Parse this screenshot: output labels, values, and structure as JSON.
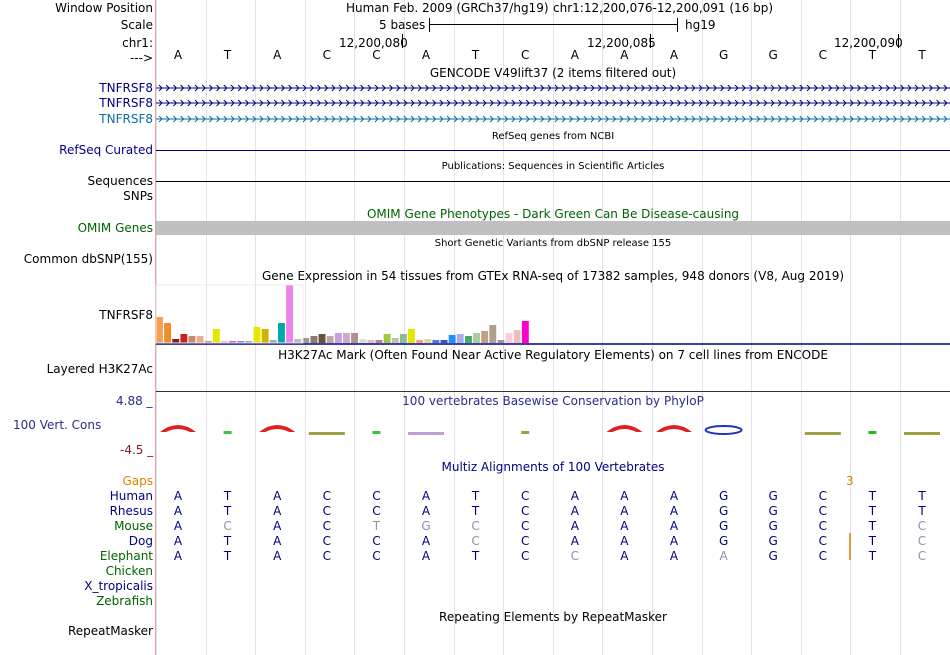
{
  "header": {
    "window_position_label": "Window Position",
    "scale_label": "Scale",
    "chr_label": "chr1:",
    "arrow_label": "--->",
    "assembly": "Human Feb. 2009 (GRCh37/hg19)",
    "position": "chr1:12,200,076-12,200,091 (16 bp)",
    "scale_text": "5 bases",
    "scale_db": "hg19",
    "ticks": [
      "12,200,080",
      "12,200,085",
      "12,200,090"
    ]
  },
  "sequence": [
    "A",
    "T",
    "A",
    "C",
    "C",
    "A",
    "T",
    "C",
    "A",
    "A",
    "A",
    "G",
    "G",
    "C",
    "T",
    "T"
  ],
  "gencode": {
    "title": "GENCODE V49lift37 (2 items filtered out)",
    "items": [
      "TNFRSF8",
      "TNFRSF8",
      "TNFRSF8"
    ]
  },
  "refseq": {
    "title": "RefSeq genes from NCBI",
    "label": "RefSeq Curated"
  },
  "publications": {
    "title": "Publications: Sequences in Scientific Articles",
    "label": "Sequences"
  },
  "snps_label": "SNPs",
  "omim": {
    "title": "OMIM Gene Phenotypes - Dark Green Can Be Disease-causing",
    "label": "OMIM Genes"
  },
  "dbsnp": {
    "title": "Short Genetic Variants from dbSNP release 155",
    "label": "Common dbSNP(155)"
  },
  "gtex": {
    "title": "Gene Expression in 54 tissues from GTEx RNA-seq of 17382 samples, 948 donors (V8, Aug 2019)",
    "label": "TNFRSF8",
    "bars": [
      {
        "v": 26,
        "c": "#f5a050"
      },
      {
        "v": 20,
        "c": "#f28c28"
      },
      {
        "v": 4,
        "c": "#8b1a1a"
      },
      {
        "v": 9,
        "c": "#cc2222"
      },
      {
        "v": 7,
        "c": "#cd8a66"
      },
      {
        "v": 7,
        "c": "#e8b090"
      },
      {
        "v": 2,
        "c": "#c0a080"
      },
      {
        "v": 14,
        "c": "#e6e600"
      },
      {
        "v": 2,
        "c": "#ffb6c1"
      },
      {
        "v": 2,
        "c": "#cc66cc"
      },
      {
        "v": 2,
        "c": "#8888cc"
      },
      {
        "v": 2,
        "c": "#aaaaaa"
      },
      {
        "v": 16,
        "c": "#e6e600"
      },
      {
        "v": 14,
        "c": "#d4b000"
      },
      {
        "v": 3,
        "c": "#aaaaaa"
      },
      {
        "v": 20,
        "c": "#00aaaa"
      },
      {
        "v": 58,
        "c": "#ee82ee"
      },
      {
        "v": 4,
        "c": "#bbbbbb"
      },
      {
        "v": 5,
        "c": "#999999"
      },
      {
        "v": 7,
        "c": "#8b7b6b"
      },
      {
        "v": 9,
        "c": "#6b5040"
      },
      {
        "v": 7,
        "c": "#bbaa99"
      },
      {
        "v": 10,
        "c": "#c9a0dc"
      },
      {
        "v": 10,
        "c": "#ccaacc"
      },
      {
        "v": 10,
        "c": "#b09090"
      },
      {
        "v": 4,
        "c": "#dddddd"
      },
      {
        "v": 3,
        "c": "#e0c0c0"
      },
      {
        "v": 3,
        "c": "#aa88aa"
      },
      {
        "v": 9,
        "c": "#99cc44"
      },
      {
        "v": 5,
        "c": "#c0c0c0"
      },
      {
        "v": 9,
        "c": "#8fbc8f"
      },
      {
        "v": 14,
        "c": "#e6e600"
      },
      {
        "v": 3,
        "c": "#ff9999"
      },
      {
        "v": 4,
        "c": "#dddd88"
      },
      {
        "v": 3,
        "c": "#5577dd"
      },
      {
        "v": 3,
        "c": "#3355cc"
      },
      {
        "v": 8,
        "c": "#1e90ff"
      },
      {
        "v": 9,
        "c": "#aaaaee"
      },
      {
        "v": 7,
        "c": "#44aa66"
      },
      {
        "v": 10,
        "c": "#aaccaa"
      },
      {
        "v": 12,
        "c": "#c0a080"
      },
      {
        "v": 18,
        "c": "#b0a090"
      },
      {
        "v": 3,
        "c": "#999999"
      },
      {
        "v": 10,
        "c": "#ffccdd"
      },
      {
        "v": 13,
        "c": "#e8c0c0"
      },
      {
        "v": 22,
        "c": "#ff00cc"
      }
    ]
  },
  "h3k27ac": {
    "title": "H3K27Ac Mark (Often Found Near Active Regulatory Elements) on 7 cell lines from ENCODE",
    "label": "Layered H3K27Ac"
  },
  "cons": {
    "title": "100 vertebrates Basewise Conservation by PhyloP",
    "label": "100 Vert. Cons",
    "max": "4.88 _",
    "min": "-4.5 _"
  },
  "multiz": {
    "title": "Multiz Alignments of 100 Vertebrates",
    "gaps_label": "Gaps",
    "gap_value": "3",
    "species": [
      {
        "name": "Human",
        "seq": "ATACCATCAAAGGCTT",
        "faint": "................"
      },
      {
        "name": "Rhesus",
        "seq": "ATACCATCAAAGGCTT",
        "faint": "................"
      },
      {
        "name": "Mouse",
        "seq": "ACACTGCCAAAGGCTC",
        "faint": ".x..xxx........x"
      },
      {
        "name": "Dog",
        "seq": "ATACCACCAAAGGCTC",
        "faint": "......x........x"
      },
      {
        "name": "Elephant",
        "seq": "ATACCATCCAAAGCTC",
        "faint": "........x..x...x"
      },
      {
        "name": "Chicken",
        "seq": "",
        "faint": ""
      },
      {
        "name": "X_tropicalis",
        "seq": "",
        "faint": ""
      },
      {
        "name": "Zebrafish",
        "seq": "",
        "faint": ""
      }
    ]
  },
  "repeatmasker": {
    "title": "Repeating Elements by RepeatMasker",
    "label": "RepeatMasker"
  },
  "colors": {
    "navy": "#000080",
    "gencode_blue": "#0a6ea0",
    "omim_green": "#006400",
    "cons_blue": "#2b2b8c",
    "cons_red": "#8b1a1a",
    "gaps_orange": "#e08000",
    "faint": "#9090a8"
  }
}
